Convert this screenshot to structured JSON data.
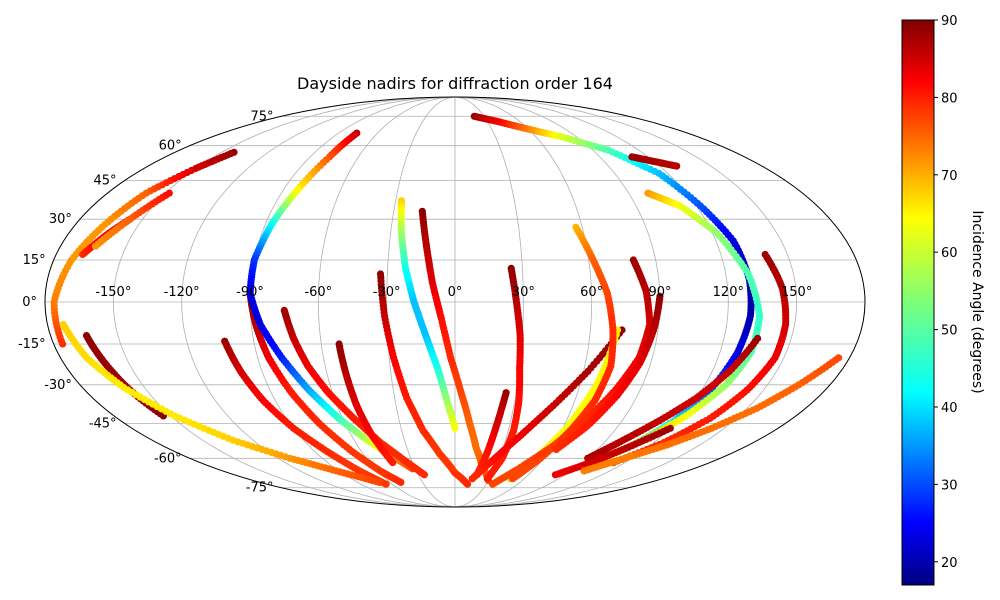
{
  "chart_data": {
    "type": "scatter",
    "projection": "mollweide",
    "title": "Dayside nadirs for diffraction order 164",
    "grid": true,
    "lon_ticks": [
      -150,
      -120,
      -90,
      -60,
      -30,
      0,
      30,
      60,
      90,
      120,
      150
    ],
    "lat_ticks": [
      -75,
      -60,
      -45,
      -30,
      -15,
      0,
      15,
      30,
      45,
      60,
      75
    ],
    "lon_tick_labels": [
      "-150°",
      "-120°",
      "-90°",
      "-60°",
      "-30°",
      "0°",
      "30°",
      "60°",
      "90°",
      "120°",
      "150°"
    ],
    "lat_tick_labels": [
      "-75°",
      "-60°",
      "-45°",
      "-30°",
      "-15°",
      "0°",
      "15°",
      "30°",
      "45°",
      "60°",
      "75°"
    ],
    "colorbar": {
      "label": "Incidence Angle (degrees)",
      "colormap": "jet",
      "range": [
        17,
        90
      ],
      "ticks": [
        20,
        30,
        40,
        50,
        60,
        70,
        80,
        90
      ],
      "tick_labels": [
        "20",
        "30",
        "40",
        "50",
        "60",
        "70",
        "80",
        "90"
      ],
      "placement": "right"
    },
    "series": [
      {
        "points": [
          [
            -90,
            3,
            89
          ],
          [
            -88,
            -8,
            86
          ],
          [
            -85,
            -20,
            82
          ],
          [
            -80,
            -33,
            79
          ],
          [
            -74,
            -45,
            78
          ],
          [
            -66,
            -57,
            77
          ],
          [
            -58,
            -66,
            77
          ],
          [
            -50,
            -72,
            78
          ]
        ]
      },
      {
        "points": [
          [
            -103,
            -14,
            88
          ],
          [
            -100,
            -25,
            84
          ],
          [
            -96,
            -36,
            81
          ],
          [
            -90,
            -47,
            79
          ],
          [
            -82,
            -57,
            78
          ],
          [
            -74,
            -66,
            77
          ],
          [
            -66,
            -73,
            77
          ]
        ]
      },
      {
        "points": [
          [
            -76,
            66,
            85
          ],
          [
            -78,
            55,
            75
          ],
          [
            -83,
            40,
            62
          ],
          [
            -87,
            28,
            45
          ],
          [
            -90,
            15,
            30
          ],
          [
            -90,
            3,
            24
          ],
          [
            -86,
            -8,
            24
          ],
          [
            -79,
            -20,
            28
          ],
          [
            -71,
            -32,
            38
          ],
          [
            -62,
            -43,
            48
          ],
          [
            -52,
            -52,
            58
          ],
          [
            -42,
            -59,
            70
          ],
          [
            -32,
            -65,
            76
          ]
        ]
      },
      {
        "points": [
          [
            -75,
            -3,
            88
          ],
          [
            -72,
            -13,
            85
          ],
          [
            -68,
            -23,
            82
          ],
          [
            -62,
            -33,
            80
          ],
          [
            -54,
            -43,
            79
          ],
          [
            -45,
            -53,
            78
          ],
          [
            -35,
            -61,
            78
          ],
          [
            -25,
            -68,
            78
          ]
        ]
      },
      {
        "points": [
          [
            -52,
            -15,
            89
          ],
          [
            -51,
            -27,
            86
          ],
          [
            -50,
            -38,
            83
          ],
          [
            -48,
            -50,
            81
          ],
          [
            -44,
            -62,
            79
          ]
        ]
      },
      {
        "points": [
          [
            -33,
            10,
            89
          ],
          [
            -31,
            -5,
            85
          ],
          [
            -28,
            -20,
            81
          ],
          [
            -24,
            -35,
            79
          ],
          [
            -18,
            -48,
            78
          ],
          [
            -10,
            -58,
            77
          ],
          [
            0,
            -67,
            77
          ],
          [
            12,
            -73,
            78
          ]
        ]
      },
      {
        "points": [
          [
            -27,
            37,
            66
          ],
          [
            -25,
            25,
            56
          ],
          [
            -22,
            12,
            46
          ],
          [
            -18,
            0,
            40
          ],
          [
            -13,
            -12,
            40
          ],
          [
            -8,
            -24,
            46
          ],
          [
            -4,
            -36,
            55
          ],
          [
            0,
            -47,
            62
          ]
        ]
      },
      {
        "points": [
          [
            -16,
            33,
            89
          ],
          [
            -13,
            20,
            86
          ],
          [
            -10,
            7,
            83
          ],
          [
            -6,
            -6,
            80
          ],
          [
            -2,
            -20,
            78
          ],
          [
            3,
            -33,
            76
          ],
          [
            8,
            -45,
            74
          ],
          [
            13,
            -55,
            73
          ],
          [
            20,
            -64,
            74
          ],
          [
            30,
            -71,
            76
          ]
        ]
      },
      {
        "points": [
          [
            -164,
            -12,
            89
          ],
          [
            -161,
            -22,
            88
          ],
          [
            -158,
            -32,
            88
          ],
          [
            -154,
            -42,
            89
          ]
        ]
      },
      {
        "points": [
          [
            -176,
            -15,
            78
          ],
          [
            -176,
            0,
            72
          ],
          [
            -172,
            15,
            70
          ],
          [
            -166,
            28,
            70
          ],
          [
            -160,
            40,
            74
          ],
          [
            -150,
            50,
            84
          ],
          [
            -142,
            57,
            88
          ]
        ]
      },
      {
        "points": [
          [
            -173,
            -8,
            66
          ],
          [
            -168,
            -20,
            65
          ],
          [
            -160,
            -31,
            64
          ],
          [
            -148,
            -42,
            64
          ],
          [
            -132,
            -52,
            66
          ],
          [
            -112,
            -60,
            70
          ],
          [
            -92,
            -66,
            74
          ],
          [
            -70,
            -72,
            76
          ]
        ]
      },
      {
        "points": [
          [
            -168,
            17,
            78
          ],
          [
            -162,
            24,
            82
          ],
          [
            -156,
            30,
            86
          ]
        ]
      },
      {
        "points": [
          [
            -164,
            20,
            70
          ],
          [
            -156,
            30,
            74
          ],
          [
            -148,
            40,
            80
          ]
        ]
      },
      {
        "points": [
          [
            25,
            12,
            89
          ],
          [
            27,
            0,
            86
          ],
          [
            29,
            -12,
            83
          ],
          [
            30,
            -24,
            81
          ],
          [
            32,
            -36,
            80
          ],
          [
            33,
            -48,
            79
          ],
          [
            32,
            -60,
            79
          ],
          [
            28,
            -70,
            79
          ]
        ]
      },
      {
        "points": [
          [
            25,
            -33,
            88
          ],
          [
            23,
            -45,
            84
          ],
          [
            21,
            -57,
            80
          ],
          [
            18,
            -68,
            78
          ]
        ]
      },
      {
        "points": [
          [
            74,
            -10,
            89
          ],
          [
            62,
            -25,
            87
          ],
          [
            50,
            -38,
            85
          ],
          [
            38,
            -50,
            82
          ],
          [
            26,
            -61,
            80
          ],
          [
            15,
            -70,
            78
          ]
        ]
      },
      {
        "points": [
          [
            72,
            -10,
            64
          ],
          [
            68,
            -30,
            63
          ],
          [
            62,
            -47,
            62
          ],
          [
            55,
            -60,
            64
          ],
          [
            48,
            -70,
            66
          ]
        ]
      },
      {
        "points": [
          [
            57,
            27,
            68
          ],
          [
            62,
            15,
            74
          ],
          [
            67,
            3,
            76
          ],
          [
            70,
            -10,
            78
          ],
          [
            72,
            -23,
            78
          ],
          [
            70,
            -36,
            78
          ],
          [
            65,
            -48,
            77
          ],
          [
            58,
            -60,
            76
          ],
          [
            50,
            -70,
            76
          ]
        ]
      },
      {
        "points": [
          [
            80,
            15,
            88
          ],
          [
            84,
            4,
            86
          ],
          [
            86,
            -8,
            84
          ],
          [
            84,
            -20,
            82
          ],
          [
            78,
            -32,
            80
          ],
          [
            70,
            -44,
            78
          ],
          [
            60,
            -55,
            77
          ],
          [
            48,
            -65,
            76
          ],
          [
            36,
            -73,
            76
          ]
        ]
      },
      {
        "points": [
          [
            90,
            2,
            89
          ],
          [
            88,
            -10,
            86
          ],
          [
            85,
            -22,
            83
          ],
          [
            80,
            -34,
            81
          ],
          [
            73,
            -46,
            79
          ],
          [
            64,
            -56,
            78
          ]
        ]
      },
      {
        "points": [
          [
            20,
            75,
            88
          ],
          [
            40,
            72,
            82
          ],
          [
            60,
            68,
            72
          ],
          [
            80,
            64,
            60
          ],
          [
            100,
            58,
            50
          ],
          [
            115,
            48,
            40
          ],
          [
            122,
            35,
            32
          ],
          [
            128,
            22,
            24
          ],
          [
            130,
            8,
            20
          ],
          [
            130,
            -5,
            20
          ],
          [
            128,
            -18,
            24
          ],
          [
            124,
            -32,
            32
          ],
          [
            118,
            -44,
            42
          ],
          [
            108,
            -55,
            55
          ],
          [
            96,
            -63,
            66
          ]
        ]
      },
      {
        "points": [
          [
            100,
            40,
            70
          ],
          [
            112,
            35,
            62
          ],
          [
            122,
            25,
            55
          ],
          [
            130,
            10,
            50
          ],
          [
            134,
            -5,
            48
          ],
          [
            134,
            -18,
            50
          ],
          [
            130,
            -30,
            55
          ],
          [
            122,
            -42,
            62
          ],
          [
            112,
            -52,
            68
          ],
          [
            100,
            -60,
            74
          ]
        ]
      },
      {
        "points": [
          [
            140,
            17,
            88
          ],
          [
            144,
            5,
            86
          ],
          [
            146,
            -8,
            84
          ],
          [
            146,
            -20,
            82
          ],
          [
            142,
            -32,
            80
          ],
          [
            136,
            -43,
            79
          ],
          [
            126,
            -53,
            78
          ],
          [
            112,
            -62,
            77
          ]
        ]
      },
      {
        "points": [
          [
            135,
            -13,
            88
          ],
          [
            128,
            -25,
            85
          ],
          [
            120,
            -35,
            84
          ],
          [
            110,
            -44,
            85
          ],
          [
            100,
            -52,
            86
          ],
          [
            90,
            -60,
            87
          ]
        ]
      },
      {
        "points": [
          [
            120,
            -47,
            88
          ],
          [
            108,
            -55,
            86
          ],
          [
            96,
            -62,
            84
          ],
          [
            82,
            -68,
            82
          ]
        ]
      },
      {
        "points": [
          [
            175,
            -20,
            76
          ],
          [
            165,
            -30,
            74
          ],
          [
            155,
            -39,
            73
          ],
          [
            143,
            -47,
            73
          ],
          [
            130,
            -54,
            73
          ],
          [
            115,
            -60,
            72
          ],
          [
            100,
            -66,
            72
          ]
        ]
      },
      {
        "points": [
          [
            110,
            55,
            88
          ],
          [
            120,
            53,
            87
          ],
          [
            130,
            51,
            86
          ]
        ]
      }
    ]
  }
}
